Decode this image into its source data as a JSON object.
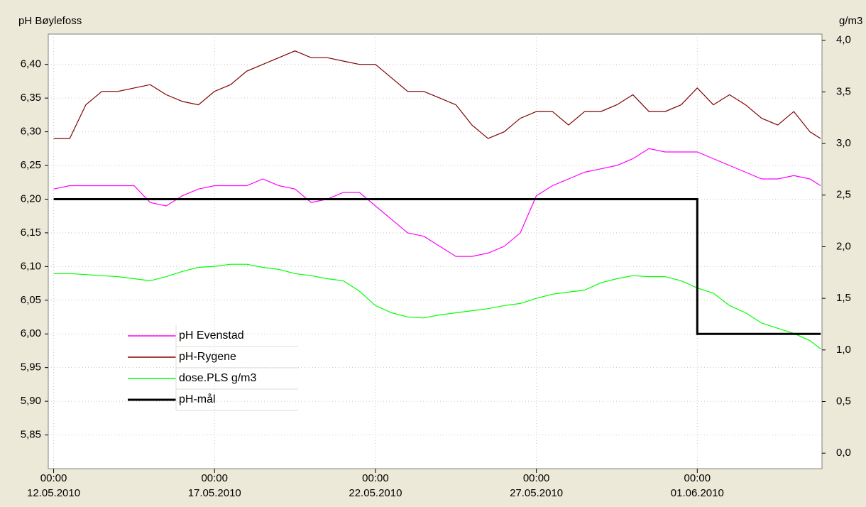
{
  "chart_data": {
    "type": "line",
    "ylabel": "pH  Bøylefoss",
    "y2label": "g/m3",
    "x": [
      "2010-05-12T00:00",
      "2010-05-12T12:00",
      "2010-05-13T00:00",
      "2010-05-13T12:00",
      "2010-05-14T00:00",
      "2010-05-14T12:00",
      "2010-05-15T00:00",
      "2010-05-15T12:00",
      "2010-05-16T00:00",
      "2010-05-16T12:00",
      "2010-05-17T00:00",
      "2010-05-17T12:00",
      "2010-05-18T00:00",
      "2010-05-18T12:00",
      "2010-05-19T00:00",
      "2010-05-19T12:00",
      "2010-05-20T00:00",
      "2010-05-20T12:00",
      "2010-05-21T00:00",
      "2010-05-21T12:00",
      "2010-05-22T00:00",
      "2010-05-22T12:00",
      "2010-05-23T00:00",
      "2010-05-23T12:00",
      "2010-05-24T00:00",
      "2010-05-24T12:00",
      "2010-05-25T00:00",
      "2010-05-25T12:00",
      "2010-05-26T00:00",
      "2010-05-26T12:00",
      "2010-05-27T00:00",
      "2010-05-27T12:00",
      "2010-05-28T00:00",
      "2010-05-28T12:00",
      "2010-05-29T00:00",
      "2010-05-29T12:00",
      "2010-05-30T00:00",
      "2010-05-30T12:00",
      "2010-05-31T00:00",
      "2010-05-31T12:00",
      "2010-06-01T00:00",
      "2010-06-01T12:00",
      "2010-06-02T00:00",
      "2010-06-02T12:00",
      "2010-06-03T00:00",
      "2010-06-03T12:00",
      "2010-06-04T00:00",
      "2010-06-04T12:00",
      "2010-06-04T20:00"
    ],
    "series": [
      {
        "name": "pH Evenstad",
        "color": "#ff00ff",
        "values": [
          6.215,
          6.22,
          6.22,
          6.22,
          6.22,
          6.22,
          6.195,
          6.19,
          6.205,
          6.215,
          6.22,
          6.22,
          6.22,
          6.23,
          6.22,
          6.215,
          6.195,
          6.2,
          6.21,
          6.21,
          6.19,
          6.17,
          6.15,
          6.145,
          6.13,
          6.115,
          6.115,
          6.12,
          6.13,
          6.15,
          6.205,
          6.22,
          6.23,
          6.24,
          6.245,
          6.25,
          6.26,
          6.275,
          6.27,
          6.27,
          6.27,
          6.26,
          6.25,
          6.24,
          6.23,
          6.23,
          6.235,
          6.23,
          6.22
        ]
      },
      {
        "name": "pH-Rygene",
        "color": "#800000",
        "values": [
          6.29,
          6.29,
          6.34,
          6.36,
          6.36,
          6.365,
          6.37,
          6.355,
          6.345,
          6.34,
          6.36,
          6.37,
          6.39,
          6.4,
          6.41,
          6.42,
          6.41,
          6.41,
          6.405,
          6.4,
          6.4,
          6.38,
          6.36,
          6.36,
          6.35,
          6.34,
          6.31,
          6.29,
          6.3,
          6.32,
          6.33,
          6.33,
          6.31,
          6.33,
          6.33,
          6.34,
          6.355,
          6.33,
          6.33,
          6.34,
          6.365,
          6.34,
          6.355,
          6.34,
          6.32,
          6.31,
          6.33,
          6.3,
          6.29
        ]
      },
      {
        "name": "dose.PLS g/m3",
        "color": "#00ff00",
        "axis": "y2",
        "values": [
          1.74,
          1.74,
          1.73,
          1.72,
          1.71,
          1.69,
          1.67,
          1.71,
          1.76,
          1.8,
          1.81,
          1.83,
          1.83,
          1.8,
          1.78,
          1.74,
          1.72,
          1.69,
          1.67,
          1.57,
          1.43,
          1.36,
          1.32,
          1.31,
          1.34,
          1.36,
          1.38,
          1.4,
          1.43,
          1.45,
          1.5,
          1.54,
          1.56,
          1.58,
          1.65,
          1.69,
          1.72,
          1.71,
          1.71,
          1.67,
          1.6,
          1.55,
          1.43,
          1.36,
          1.26,
          1.21,
          1.16,
          1.09,
          1.01
        ]
      },
      {
        "name": "pH-mål",
        "color": "#000000",
        "width": 3,
        "x": [
          "2010-05-12T00:00",
          "2010-06-01T00:00",
          "2010-06-01T00:00",
          "2010-06-04T20:00"
        ],
        "values": [
          6.2,
          6.2,
          6.0,
          6.0
        ]
      }
    ],
    "xlim": [
      "2010-05-11T20:00",
      "2010-06-04T21:00"
    ],
    "xticks": [
      {
        "value": "2010-05-12T00:00",
        "label": "00:00\n12.05.2010"
      },
      {
        "value": "2010-05-17T00:00",
        "label": "00:00\n17.05.2010"
      },
      {
        "value": "2010-05-22T00:00",
        "label": "00:00\n22.05.2010"
      },
      {
        "value": "2010-05-27T00:00",
        "label": "00:00\n27.05.2010"
      },
      {
        "value": "2010-06-01T00:00",
        "label": "00:00\n01.06.2010"
      }
    ],
    "ylim": [
      5.8,
      6.445
    ],
    "yticks": [
      {
        "value": 5.85,
        "label": "5,85"
      },
      {
        "value": 5.9,
        "label": "5,90"
      },
      {
        "value": 5.95,
        "label": "5,95"
      },
      {
        "value": 6.0,
        "label": "6,00"
      },
      {
        "value": 6.05,
        "label": "6,05"
      },
      {
        "value": 6.1,
        "label": "6,10"
      },
      {
        "value": 6.15,
        "label": "6,15"
      },
      {
        "value": 6.2,
        "label": "6,20"
      },
      {
        "value": 6.25,
        "label": "6,25"
      },
      {
        "value": 6.3,
        "label": "6,30"
      },
      {
        "value": 6.35,
        "label": "6,35"
      },
      {
        "value": 6.4,
        "label": "6,40"
      }
    ],
    "y2lim": [
      -0.15,
      4.06
    ],
    "y2ticks": [
      {
        "value": 0,
        "label": "0,0"
      },
      {
        "value": 0.5,
        "label": "0,5"
      },
      {
        "value": 1,
        "label": "1,0"
      },
      {
        "value": 1.5,
        "label": "1,5"
      },
      {
        "value": 2,
        "label": "2,0"
      },
      {
        "value": 2.5,
        "label": "2,5"
      },
      {
        "value": 3,
        "label": "3,0"
      },
      {
        "value": 3.5,
        "label": "3,5"
      },
      {
        "value": 4,
        "label": "4,0"
      }
    ],
    "grid": true,
    "legend": "lower left"
  }
}
